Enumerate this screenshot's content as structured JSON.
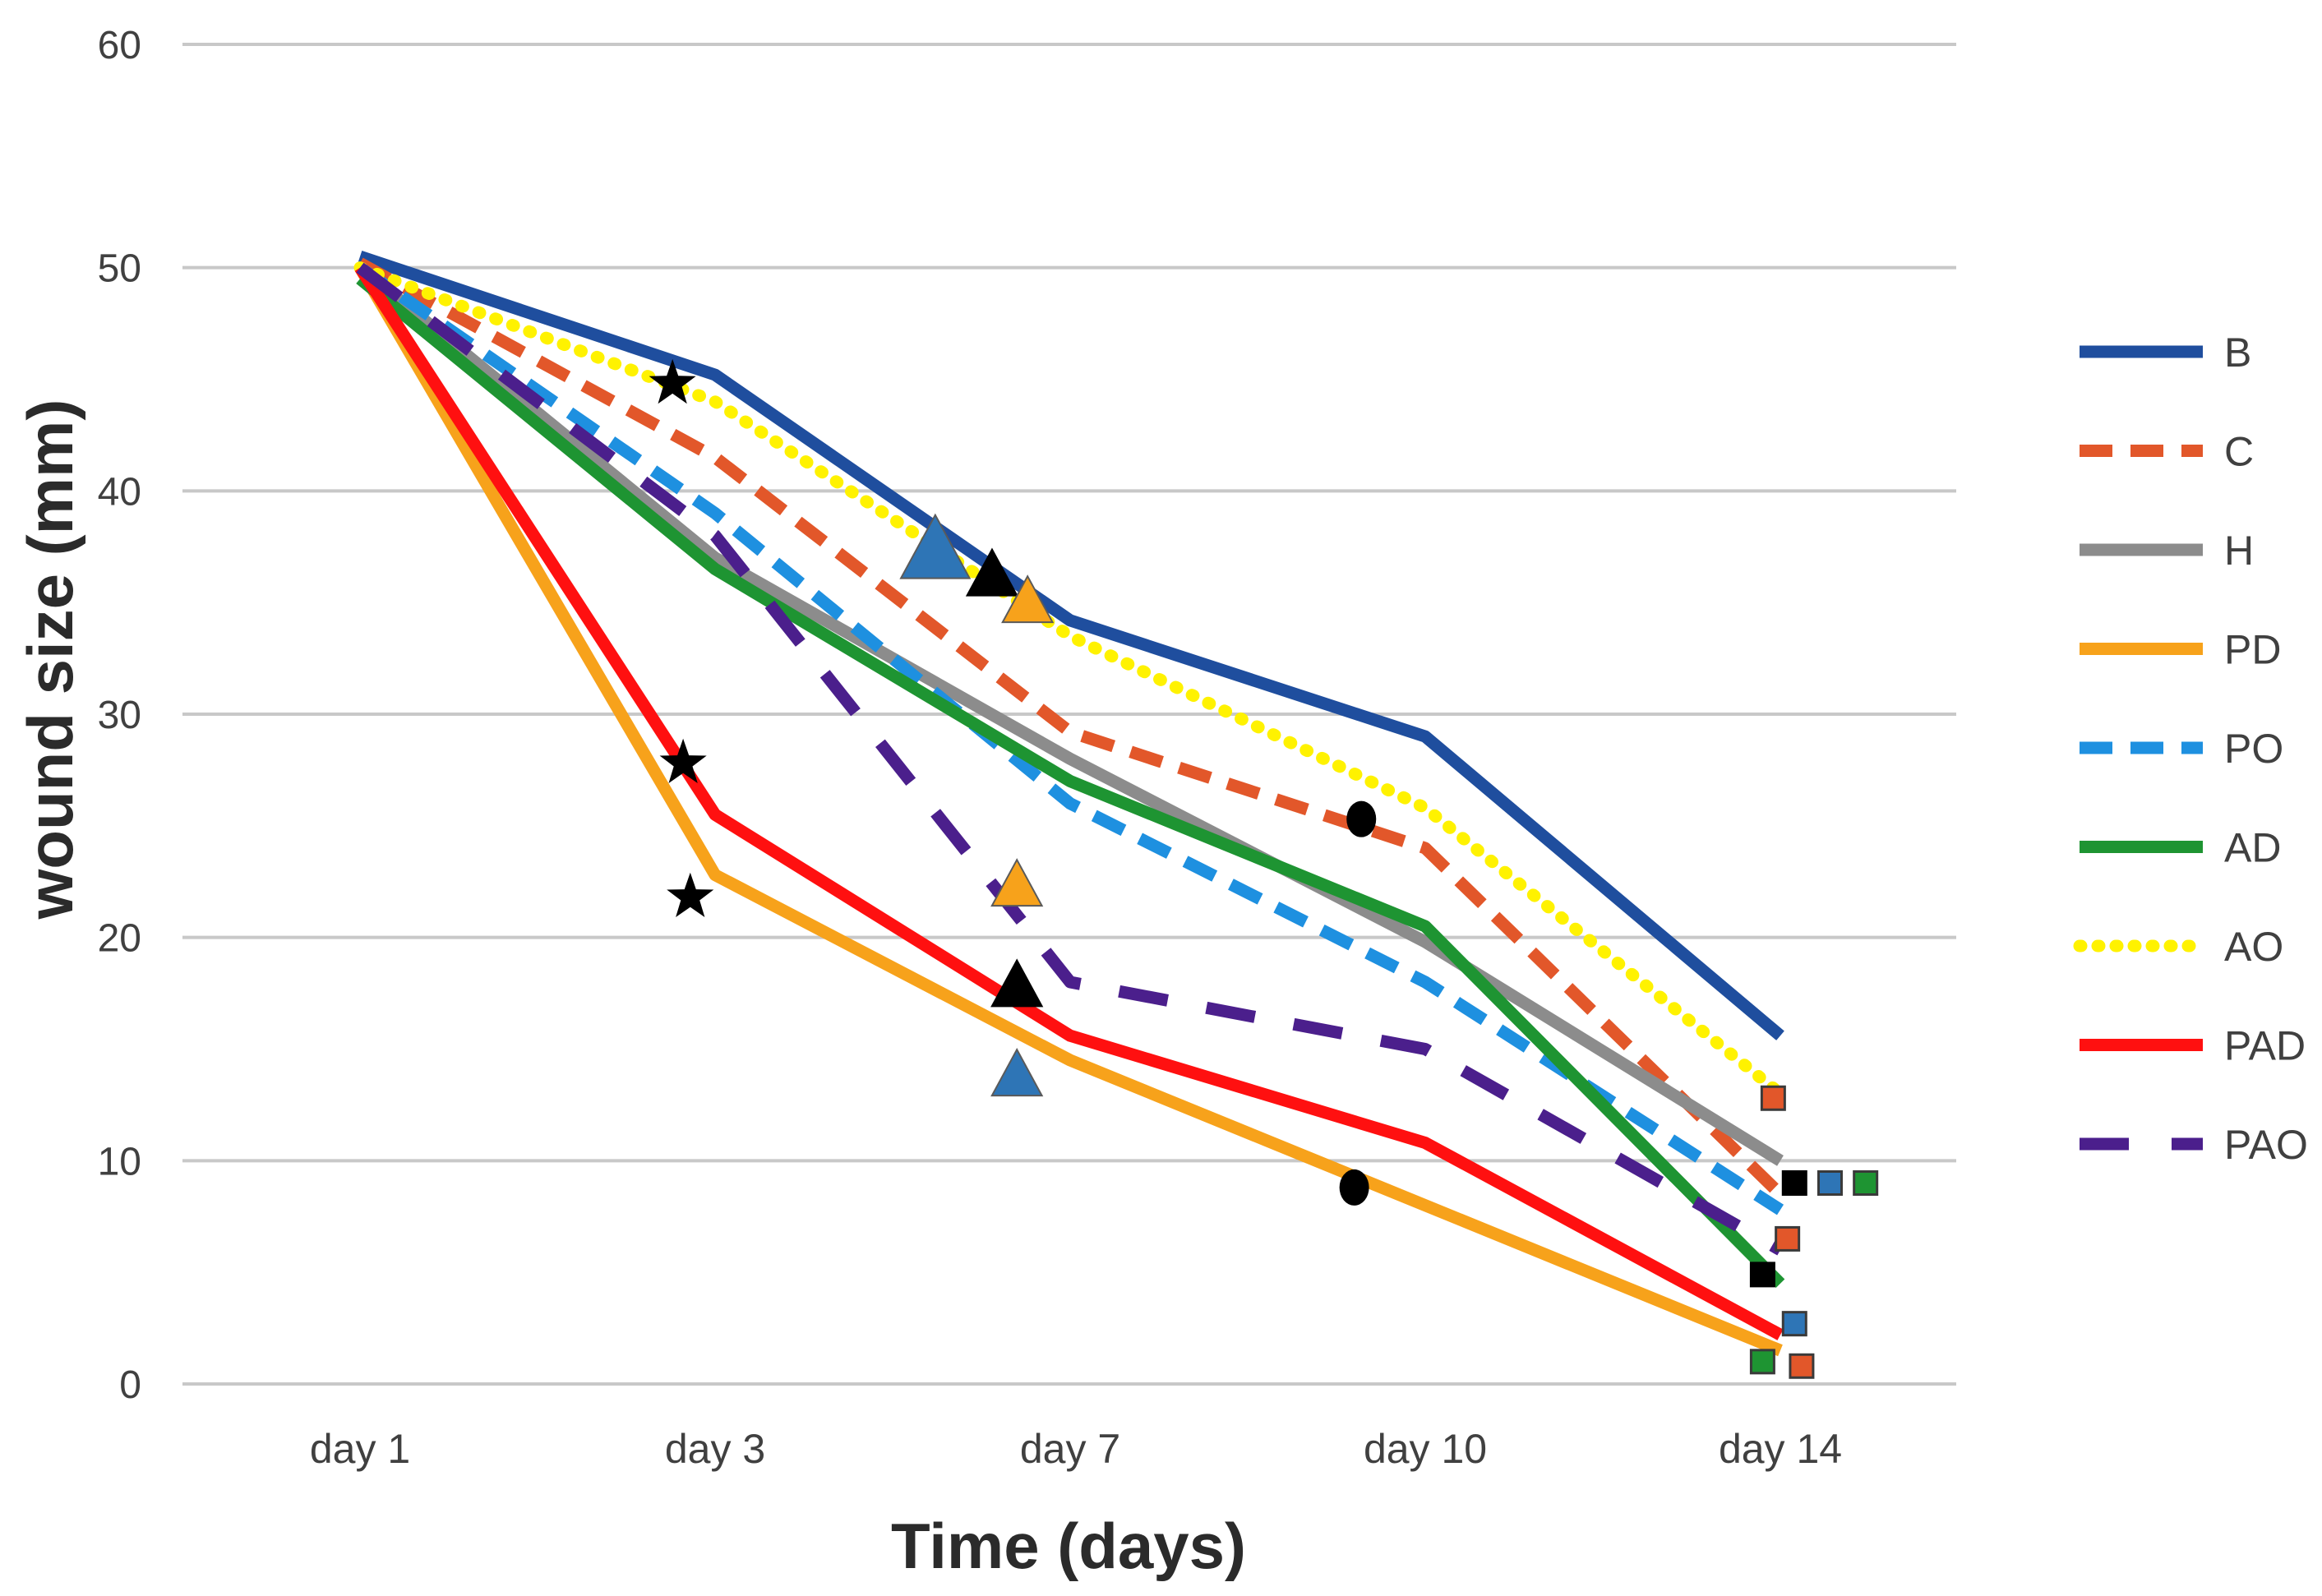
{
  "chart_data": {
    "type": "line",
    "title": "",
    "xlabel": "Time (days)",
    "ylabel": "wound size (mm)",
    "categories": [
      "day 1",
      "day 3",
      "day 7",
      "day 10",
      "day 14"
    ],
    "ylim": [
      0,
      60
    ],
    "yticks": [
      0,
      10,
      20,
      30,
      40,
      50,
      60
    ],
    "grid": true,
    "legend_position": "right",
    "series": [
      {
        "name": "B",
        "color": "#1F4E9E",
        "dash": "solid",
        "values": [
          50.5,
          45.2,
          34.2,
          29.0,
          15.6
        ]
      },
      {
        "name": "C",
        "color": "#E2572A",
        "dash": "dashed",
        "values": [
          50.2,
          41.5,
          29.2,
          24.0,
          8.5
        ]
      },
      {
        "name": "H",
        "color": "#8C8C8C",
        "dash": "solid",
        "values": [
          50.0,
          37.0,
          28.0,
          19.8,
          10.0
        ]
      },
      {
        "name": "PD",
        "color": "#F7A21B",
        "dash": "solid",
        "values": [
          50.0,
          22.8,
          14.5,
          8.0,
          1.5
        ]
      },
      {
        "name": "PO",
        "color": "#1E90E0",
        "dash": "dashed",
        "values": [
          50.0,
          39.0,
          26.0,
          18.0,
          7.8
        ]
      },
      {
        "name": "AD",
        "color": "#1E9432",
        "dash": "solid",
        "values": [
          49.5,
          36.5,
          27.0,
          20.5,
          4.5
        ]
      },
      {
        "name": "AO",
        "color": "#FFF200",
        "dash": "dotted",
        "values": [
          50.0,
          44.0,
          33.5,
          25.8,
          13.0
        ]
      },
      {
        "name": "PAD",
        "color": "#FF1010",
        "dash": "solid",
        "values": [
          50.0,
          25.5,
          15.6,
          10.8,
          2.2
        ]
      },
      {
        "name": "PAO",
        "color": "#4B1F8C",
        "dash": "longdash",
        "values": [
          50.0,
          38.0,
          18.0,
          15.0,
          6.0
        ]
      }
    ],
    "markers": [
      {
        "shape": "star",
        "color": "#000000",
        "x": 0.88,
        "y": 44.8,
        "label": ""
      },
      {
        "shape": "star",
        "color": "#000000",
        "x": 0.91,
        "y": 27.8,
        "label": ""
      },
      {
        "shape": "star",
        "color": "#000000",
        "x": 0.93,
        "y": 21.8,
        "label": ""
      },
      {
        "shape": "triangle",
        "color": "#2E75B6",
        "x": 1.62,
        "y": 37.3,
        "label": ""
      },
      {
        "shape": "triangle",
        "color": "#000000",
        "x": 1.78,
        "y": 36.2,
        "label": ""
      },
      {
        "shape": "triangle",
        "color": "#F7A21B",
        "x": 1.88,
        "y": 35.0,
        "label": ""
      },
      {
        "shape": "triangle",
        "color": "#F7A21B",
        "x": 1.85,
        "y": 22.3,
        "label": ""
      },
      {
        "shape": "triangle",
        "color": "#000000",
        "x": 1.85,
        "y": 17.8,
        "label": ""
      },
      {
        "shape": "triangle",
        "color": "#2E75B6",
        "x": 1.85,
        "y": 13.8,
        "label": ""
      },
      {
        "shape": "circle",
        "color": "#000000",
        "x": 2.82,
        "y": 25.3,
        "label": ""
      },
      {
        "shape": "circle",
        "color": "#000000",
        "x": 2.8,
        "y": 8.8,
        "label": ""
      },
      {
        "shape": "square",
        "color": "#E2572A",
        "x": 3.98,
        "y": 12.8,
        "label": ""
      },
      {
        "shape": "square",
        "color": "#000000",
        "x": 4.04,
        "y": 9.0,
        "label": ""
      },
      {
        "shape": "square",
        "color": "#2E75B6",
        "x": 4.14,
        "y": 9.0,
        "label": ""
      },
      {
        "shape": "square",
        "color": "#1E9432",
        "x": 4.24,
        "y": 9.0,
        "label": ""
      },
      {
        "shape": "square",
        "color": "#E2572A",
        "x": 4.02,
        "y": 6.5,
        "label": ""
      },
      {
        "shape": "square",
        "color": "#000000",
        "x": 3.95,
        "y": 4.9,
        "label": ""
      },
      {
        "shape": "square",
        "color": "#2E75B6",
        "x": 4.04,
        "y": 2.7,
        "label": ""
      },
      {
        "shape": "square",
        "color": "#1E9432",
        "x": 3.95,
        "y": 1.0,
        "label": ""
      },
      {
        "shape": "square",
        "color": "#E2572A",
        "x": 4.06,
        "y": 0.8,
        "label": ""
      }
    ]
  }
}
